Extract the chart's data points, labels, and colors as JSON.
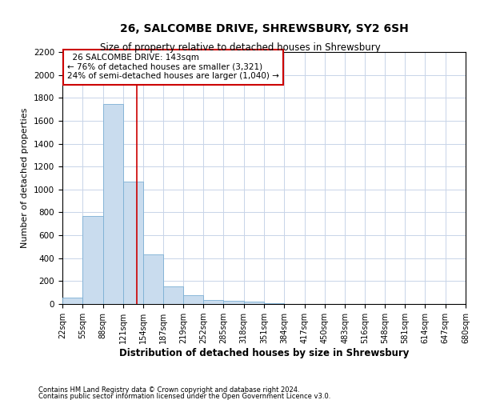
{
  "title1": "26, SALCOMBE DRIVE, SHREWSBURY, SY2 6SH",
  "title2": "Size of property relative to detached houses in Shrewsbury",
  "xlabel": "Distribution of detached houses by size in Shrewsbury",
  "ylabel": "Number of detached properties",
  "footnote1": "Contains HM Land Registry data © Crown copyright and database right 2024.",
  "footnote2": "Contains public sector information licensed under the Open Government Licence v3.0.",
  "annotation_line1": "26 SALCOMBE DRIVE: 143sqm",
  "annotation_line2": "← 76% of detached houses are smaller (3,321)",
  "annotation_line3": "24% of semi-detached houses are larger (1,040) →",
  "property_size": 143,
  "bar_edges": [
    22,
    55,
    88,
    121,
    154,
    187,
    219,
    252,
    285,
    318,
    351,
    384,
    417,
    450,
    483,
    516,
    548,
    581,
    614,
    647,
    680
  ],
  "bar_heights": [
    55,
    765,
    1745,
    1070,
    430,
    155,
    80,
    35,
    30,
    20,
    10,
    0,
    0,
    0,
    0,
    0,
    0,
    0,
    0,
    0
  ],
  "bar_color": "#c9dcee",
  "bar_edge_color": "#7bafd4",
  "red_line_color": "#cc0000",
  "grid_color": "#c8d4e8",
  "ylim": [
    0,
    2200
  ],
  "yticks": [
    0,
    200,
    400,
    600,
    800,
    1000,
    1200,
    1400,
    1600,
    1800,
    2000,
    2200
  ],
  "annotation_box_color": "#ffffff",
  "annotation_box_edge": "#cc0000",
  "bg_color": "#ffffff"
}
